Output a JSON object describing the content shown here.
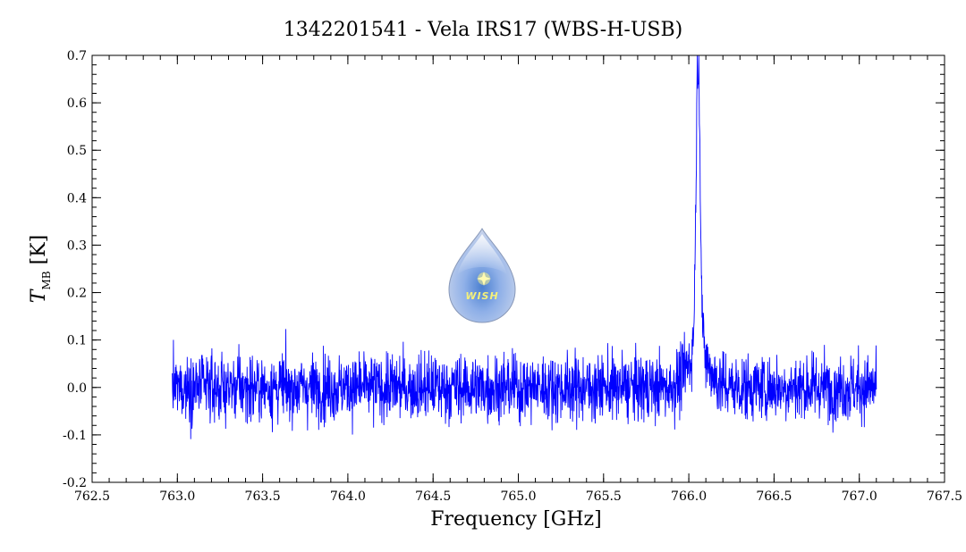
{
  "chart_data": {
    "type": "line",
    "title": "1342201541 - Vela IRS17 (WBS-H-USB)",
    "xlabel": "Frequency [GHz]",
    "ylabel_main": "T",
    "ylabel_sub": "MB",
    "ylabel_unit": "[K]",
    "xlim": [
      762.5,
      767.5
    ],
    "ylim": [
      -0.2,
      0.7
    ],
    "x_ticks": [
      "762.5",
      "763.0",
      "763.5",
      "764.0",
      "764.5",
      "765.0",
      "765.5",
      "766.0",
      "766.5",
      "767.0",
      "767.5"
    ],
    "y_ticks": [
      "-0.2",
      "-0.1",
      "0.0",
      "0.1",
      "0.2",
      "0.3",
      "0.4",
      "0.5",
      "0.6",
      "0.7"
    ],
    "grid": false,
    "legend": "none",
    "series": [
      {
        "color": "#0000ff",
        "x_range": [
          762.97,
          767.1
        ],
        "noise_rms": 0.035,
        "baseline": 0.0,
        "line_center": 766.055,
        "line_peak": 0.64,
        "line_width": 0.012,
        "wing_amplitude": 0.08,
        "wing_width": 0.06,
        "x": [
          762.97,
          763.2,
          763.5,
          763.8,
          764.0,
          764.2,
          764.5,
          764.7,
          765.0,
          765.2,
          765.5,
          765.7,
          765.85,
          765.95,
          766.0,
          766.03,
          766.05,
          766.06,
          766.08,
          766.1,
          766.15,
          766.3,
          766.5,
          766.7,
          767.0,
          767.1
        ],
        "y": [
          0.0,
          0.01,
          0.0,
          -0.01,
          0.0,
          0.01,
          0.0,
          0.0,
          0.01,
          0.0,
          0.0,
          0.01,
          0.02,
          0.04,
          0.08,
          0.22,
          0.64,
          0.52,
          0.14,
          0.08,
          0.04,
          0.01,
          0.0,
          0.0,
          0.0,
          0.0
        ]
      }
    ]
  },
  "logo": {
    "text": "WISH"
  }
}
